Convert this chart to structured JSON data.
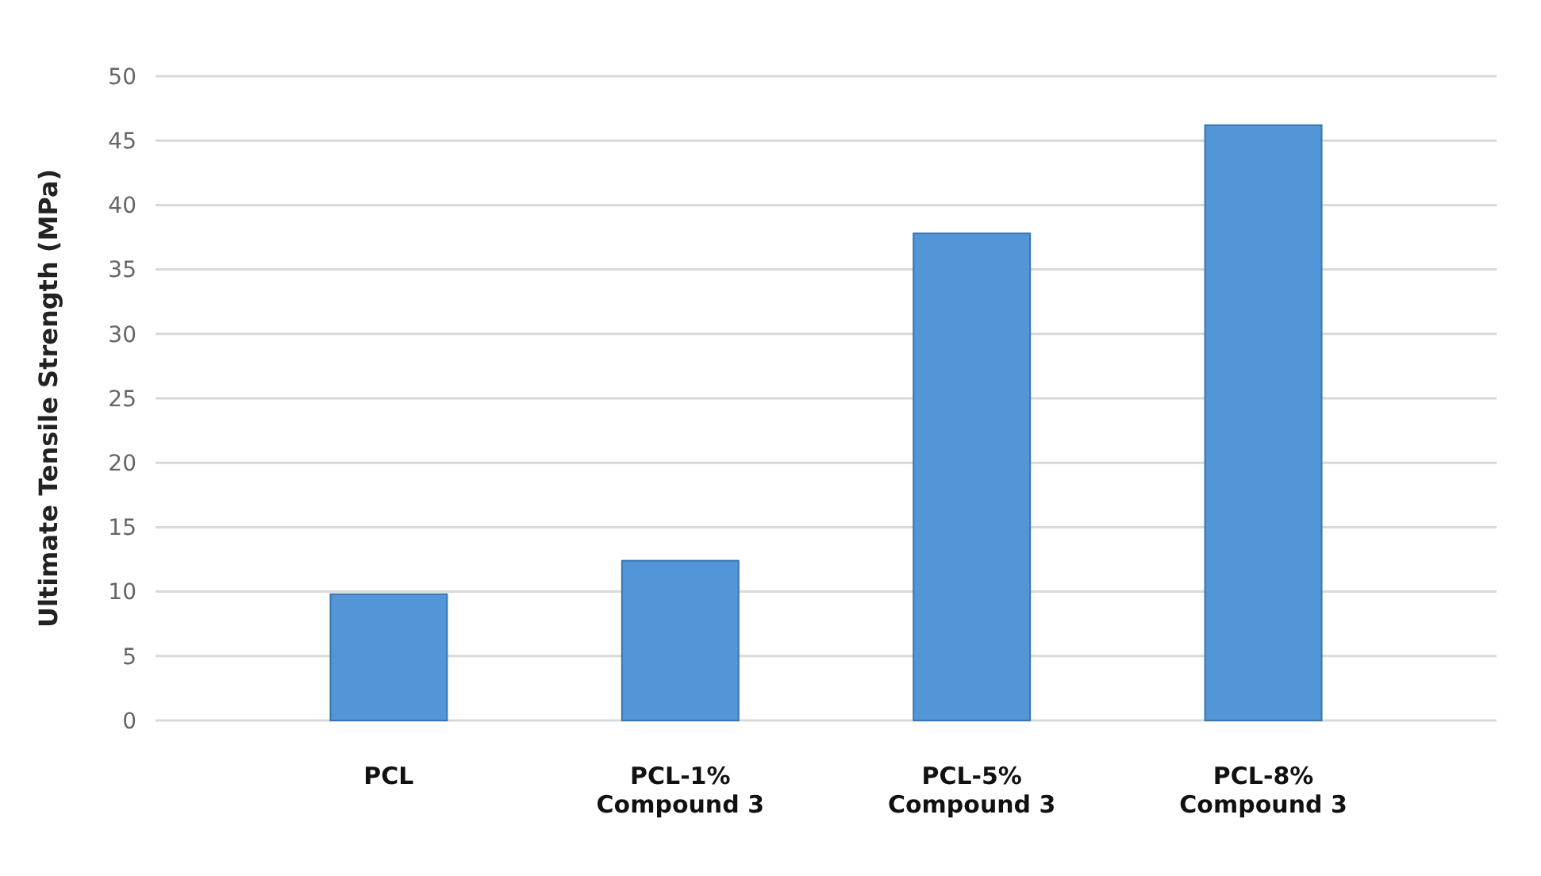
{
  "chart_data": {
    "type": "bar",
    "ylabel": "Ultimate Tensile Strength (MPa)",
    "categories": [
      "PCL",
      "PCL-1% Compound 3",
      "PCL-5% Compound 3",
      "PCL-8% Compound 3"
    ],
    "values": [
      9.8,
      12.4,
      37.8,
      46.2
    ],
    "color": "#5296d8",
    "ylim": [
      0,
      50
    ],
    "yticks": [
      0,
      5,
      10,
      15,
      20,
      25,
      30,
      35,
      40,
      45,
      50
    ],
    "grid": true
  }
}
